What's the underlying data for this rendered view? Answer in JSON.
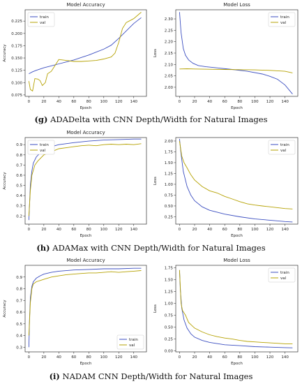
{
  "colors": {
    "train": "#3b4ec0",
    "val": "#b5a100",
    "axis": "#333333",
    "text": "#222222"
  },
  "captions": [
    {
      "letter": "(g)",
      "text": "ADADelta with CNN Depth/Width for Natural Images"
    },
    {
      "letter": "(h)",
      "text": "ADAMax with CNN Depth/Width for Natural Images"
    },
    {
      "letter": "(i)",
      "text": "NADAM CNN Depth/Width for Natural Images"
    }
  ],
  "chart_data": [
    {
      "type": "line",
      "title": "Model Accuracy",
      "xlabel": "Epoch",
      "ylabel": "Accuracy",
      "xlim": [
        -5,
        157
      ],
      "ylim": [
        0.072,
        0.248
      ],
      "xticks": [
        0,
        20,
        40,
        60,
        80,
        100,
        120,
        140
      ],
      "yticks": [
        0.075,
        0.1,
        0.125,
        0.15,
        0.175,
        0.2,
        0.225
      ],
      "ytick_labels": [
        "0.075",
        "0.100",
        "0.125",
        "0.150",
        "0.175",
        "0.200",
        "0.225"
      ],
      "legend": "upper left",
      "series": [
        {
          "name": "train",
          "x": [
            0,
            5,
            10,
            20,
            30,
            40,
            50,
            60,
            70,
            80,
            90,
            100,
            110,
            120,
            130,
            140,
            150
          ],
          "values": [
            0.118,
            0.122,
            0.125,
            0.13,
            0.134,
            0.138,
            0.142,
            0.146,
            0.151,
            0.156,
            0.162,
            0.168,
            0.176,
            0.19,
            0.205,
            0.22,
            0.232
          ]
        },
        {
          "name": "val",
          "x": [
            0,
            2,
            5,
            8,
            12,
            15,
            18,
            22,
            25,
            30,
            35,
            40,
            50,
            60,
            70,
            80,
            90,
            100,
            110,
            115,
            120,
            125,
            130,
            140,
            150
          ],
          "values": [
            0.103,
            0.086,
            0.083,
            0.108,
            0.107,
            0.104,
            0.094,
            0.1,
            0.118,
            0.123,
            0.135,
            0.147,
            0.145,
            0.143,
            0.143,
            0.144,
            0.145,
            0.148,
            0.152,
            0.16,
            0.182,
            0.21,
            0.222,
            0.23,
            0.243
          ]
        }
      ]
    },
    {
      "type": "line",
      "title": "Model Loss",
      "xlabel": "Epoch",
      "ylabel": "Loss",
      "xlim": [
        -5,
        157
      ],
      "ylim": [
        1.96,
        2.34
      ],
      "xticks": [
        0,
        20,
        40,
        60,
        80,
        100,
        120,
        140
      ],
      "yticks": [
        2.0,
        2.05,
        2.1,
        2.15,
        2.2,
        2.25,
        2.3
      ],
      "ytick_labels": [
        "2.00",
        "2.05",
        "2.10",
        "2.15",
        "2.20",
        "2.25",
        "2.30"
      ],
      "legend": "upper right",
      "series": [
        {
          "name": "train",
          "x": [
            0,
            2,
            5,
            8,
            12,
            18,
            25,
            35,
            50,
            70,
            90,
            110,
            120,
            130,
            140,
            150
          ],
          "values": [
            2.33,
            2.24,
            2.17,
            2.14,
            2.12,
            2.105,
            2.095,
            2.09,
            2.085,
            2.078,
            2.07,
            2.058,
            2.048,
            2.035,
            2.01,
            1.97
          ]
        },
        {
          "name": "val",
          "x": [
            0,
            10,
            20,
            40,
            60,
            80,
            100,
            120,
            140,
            150
          ],
          "values": [
            2.08,
            2.081,
            2.08,
            2.079,
            2.078,
            2.077,
            2.076,
            2.074,
            2.07,
            2.063
          ]
        }
      ]
    },
    {
      "type": "line",
      "title": "Model Accuracy",
      "xlabel": "Epoch",
      "ylabel": "Accuracy",
      "xlim": [
        -5,
        157
      ],
      "ylim": [
        0.12,
        0.97
      ],
      "xticks": [
        0,
        20,
        40,
        60,
        80,
        100,
        120,
        140
      ],
      "yticks": [
        0.2,
        0.3,
        0.4,
        0.5,
        0.6,
        0.7,
        0.8,
        0.9
      ],
      "ytick_labels": [
        "0.2",
        "0.3",
        "0.4",
        "0.5",
        "0.6",
        "0.7",
        "0.8",
        "0.9"
      ],
      "legend": "upper left",
      "series": [
        {
          "name": "train",
          "x": [
            0,
            1,
            2,
            4,
            6,
            10,
            15,
            20,
            30,
            40,
            60,
            80,
            100,
            120,
            140,
            150
          ],
          "values": [
            0.16,
            0.32,
            0.5,
            0.64,
            0.72,
            0.78,
            0.82,
            0.85,
            0.88,
            0.9,
            0.92,
            0.935,
            0.945,
            0.95,
            0.955,
            0.955
          ]
        },
        {
          "name": "val",
          "x": [
            0,
            2,
            4,
            8,
            12,
            20,
            30,
            40,
            50,
            60,
            70,
            80,
            90,
            100,
            110,
            120,
            130,
            140,
            150
          ],
          "values": [
            0.2,
            0.45,
            0.6,
            0.7,
            0.74,
            0.8,
            0.83,
            0.86,
            0.87,
            0.88,
            0.89,
            0.895,
            0.89,
            0.9,
            0.905,
            0.9,
            0.905,
            0.9,
            0.91
          ]
        }
      ]
    },
    {
      "type": "line",
      "title": "",
      "xlabel": "Epoch",
      "ylabel": "Loss",
      "xlim": [
        -5,
        157
      ],
      "ylim": [
        0.08,
        2.08
      ],
      "xticks": [
        0,
        20,
        40,
        60,
        80,
        100,
        120,
        140
      ],
      "yticks": [
        0.25,
        0.5,
        0.75,
        1.0,
        1.25,
        1.5,
        1.75,
        2.0
      ],
      "ytick_labels": [
        "0.25",
        "0.50",
        "0.75",
        "1.00",
        "1.25",
        "1.50",
        "1.75",
        "2.00"
      ],
      "legend": "upper right",
      "series": [
        {
          "name": "train",
          "x": [
            0,
            2,
            5,
            10,
            15,
            20,
            30,
            40,
            60,
            80,
            100,
            120,
            140,
            150
          ],
          "values": [
            2.05,
            1.7,
            1.3,
            0.95,
            0.75,
            0.62,
            0.48,
            0.4,
            0.31,
            0.25,
            0.2,
            0.17,
            0.14,
            0.13
          ]
        },
        {
          "name": "val",
          "x": [
            0,
            3,
            6,
            10,
            15,
            20,
            30,
            40,
            50,
            60,
            70,
            80,
            90,
            100,
            110,
            120,
            130,
            140,
            150
          ],
          "values": [
            2.0,
            1.65,
            1.5,
            1.38,
            1.22,
            1.1,
            0.95,
            0.85,
            0.8,
            0.72,
            0.66,
            0.6,
            0.55,
            0.52,
            0.5,
            0.48,
            0.46,
            0.44,
            0.43
          ]
        }
      ]
    },
    {
      "type": "line",
      "title": "Model Accuracy",
      "xlabel": "Epoch",
      "ylabel": "Accuracy",
      "xlim": [
        -5,
        157
      ],
      "ylim": [
        0.26,
        1.0
      ],
      "xticks": [
        0,
        20,
        40,
        60,
        80,
        100,
        120,
        140
      ],
      "yticks": [
        0.3,
        0.4,
        0.5,
        0.6,
        0.7,
        0.8,
        0.9
      ],
      "ytick_labels": [
        "0.3",
        "0.4",
        "0.5",
        "0.6",
        "0.7",
        "0.8",
        "0.9"
      ],
      "legend": "lower right",
      "series": [
        {
          "name": "train",
          "x": [
            0,
            1,
            2,
            4,
            6,
            10,
            15,
            20,
            30,
            40,
            60,
            80,
            100,
            120,
            140,
            150
          ],
          "values": [
            0.3,
            0.55,
            0.72,
            0.82,
            0.86,
            0.89,
            0.91,
            0.925,
            0.94,
            0.95,
            0.96,
            0.965,
            0.97,
            0.97,
            0.975,
            0.975
          ]
        },
        {
          "name": "val",
          "x": [
            0,
            2,
            4,
            6,
            10,
            15,
            20,
            30,
            40,
            50,
            60,
            70,
            80,
            90,
            100,
            110,
            120,
            130,
            140,
            150
          ],
          "values": [
            0.4,
            0.68,
            0.8,
            0.84,
            0.86,
            0.87,
            0.88,
            0.9,
            0.91,
            0.92,
            0.925,
            0.93,
            0.935,
            0.935,
            0.94,
            0.945,
            0.94,
            0.945,
            0.95,
            0.955
          ]
        }
      ]
    },
    {
      "type": "line",
      "title": "Model Loss",
      "xlabel": "Epoch",
      "ylabel": "Loss",
      "xlim": [
        -5,
        157
      ],
      "ylim": [
        -0.02,
        1.8
      ],
      "xticks": [
        0,
        20,
        40,
        60,
        80,
        100,
        120,
        140
      ],
      "yticks": [
        0.0,
        0.25,
        0.5,
        0.75,
        1.0,
        1.25,
        1.5,
        1.75
      ],
      "ytick_labels": [
        "0.00",
        "0.25",
        "0.50",
        "0.75",
        "1.00",
        "1.25",
        "1.50",
        "1.75"
      ],
      "legend": "upper right",
      "series": [
        {
          "name": "train",
          "x": [
            0,
            1,
            3,
            6,
            10,
            15,
            20,
            30,
            40,
            60,
            80,
            100,
            120,
            140,
            150
          ],
          "values": [
            1.7,
            1.3,
            0.9,
            0.65,
            0.48,
            0.36,
            0.29,
            0.22,
            0.18,
            0.13,
            0.11,
            0.09,
            0.08,
            0.07,
            0.065
          ]
        },
        {
          "name": "val",
          "x": [
            0,
            2,
            4,
            8,
            12,
            20,
            30,
            40,
            50,
            60,
            70,
            80,
            90,
            100,
            110,
            120,
            130,
            140,
            150
          ],
          "values": [
            1.7,
            1.0,
            0.85,
            0.75,
            0.6,
            0.48,
            0.4,
            0.34,
            0.3,
            0.27,
            0.25,
            0.22,
            0.2,
            0.19,
            0.18,
            0.17,
            0.16,
            0.15,
            0.15
          ]
        }
      ]
    }
  ]
}
